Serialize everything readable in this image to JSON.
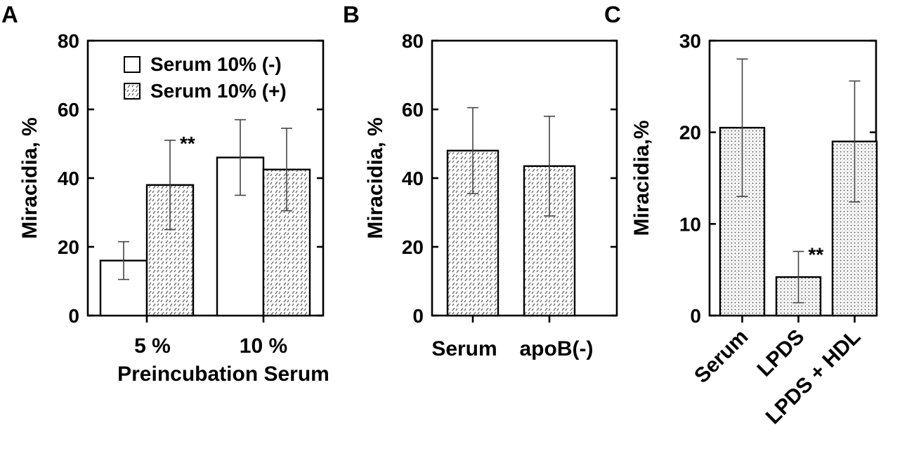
{
  "chart_data": [
    {
      "type": "bar",
      "panel_label": "A",
      "categories": [
        "5 %",
        "10 %"
      ],
      "xlabel": "Preincubation Serum",
      "ylabel": "Miracidia, %",
      "ylim": [
        0,
        80
      ],
      "yticks": [
        "0",
        "20",
        "40",
        "60",
        "80"
      ],
      "legend_position": "top-right",
      "series": [
        {
          "name": "Serum 10% (-)",
          "pattern": "open",
          "values": [
            16,
            46
          ],
          "errors": [
            5.5,
            11
          ]
        },
        {
          "name": "Serum 10% (+)",
          "pattern": "dash",
          "values": [
            38,
            42.5
          ],
          "errors": [
            13,
            12
          ]
        }
      ],
      "annotations": [
        {
          "text": "**",
          "category": "5 %",
          "series": "Serum 10% (+)"
        }
      ]
    },
    {
      "type": "bar",
      "panel_label": "B",
      "categories": [
        "Serum",
        "apoB(-)"
      ],
      "ylabel": "Miracidia, %",
      "ylim": [
        0,
        80
      ],
      "yticks": [
        "0",
        "20",
        "40",
        "60",
        "80"
      ],
      "series": [
        {
          "pattern": "dash",
          "values": [
            48,
            43.5
          ],
          "errors": [
            12.5,
            14.5
          ]
        }
      ]
    },
    {
      "type": "bar",
      "panel_label": "C",
      "categories": [
        "Serum",
        "LPDS",
        "LPDS + HDL"
      ],
      "ylabel": "Miracidia,%",
      "ylim": [
        0,
        30
      ],
      "yticks": [
        "0",
        "10",
        "20",
        "30"
      ],
      "series": [
        {
          "pattern": "dots",
          "values": [
            20.5,
            4.2,
            19
          ],
          "errors": [
            7.5,
            2.8,
            6.6
          ]
        }
      ],
      "annotations": [
        {
          "text": "**",
          "category": "LPDS"
        }
      ]
    }
  ]
}
